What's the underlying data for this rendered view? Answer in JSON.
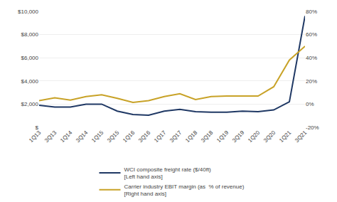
{
  "chart_data": {
    "type": "line",
    "categories": [
      "1Q13",
      "3Q13",
      "1Q14",
      "3Q14",
      "1Q15",
      "3Q15",
      "1Q16",
      "3Q16",
      "1Q17",
      "3Q17",
      "1Q18",
      "3Q18",
      "1Q19",
      "3Q19",
      "1Q20",
      "3Q20",
      "1Q21",
      "3Q21"
    ],
    "series": [
      {
        "name": "WCI composite freight rate ($/40ft)\n[Left hand axis]",
        "color": "#1f3864",
        "axis": "y",
        "values": [
          1900,
          1750,
          1750,
          2000,
          2000,
          1400,
          1100,
          1050,
          1400,
          1550,
          1350,
          1300,
          1300,
          1400,
          1350,
          1500,
          2200,
          9600
        ]
      },
      {
        "name": "Carrier industry EBIT margin (as  % of revenue)\n[Right hand axis]",
        "color": "#c8a227",
        "axis": "y2",
        "values": [
          3.0,
          5.5,
          3.5,
          6.5,
          8.0,
          5.0,
          1.5,
          3.0,
          6.5,
          9.0,
          4.0,
          6.5,
          7.0,
          7.0,
          7.0,
          15.0,
          38.0,
          50.0
        ]
      }
    ],
    "ylim": [
      0,
      10000
    ],
    "yticks": [
      {
        "value": 0,
        "label": "$"
      },
      {
        "value": 2000,
        "label": "$2,000"
      },
      {
        "value": 4000,
        "label": "$4,000"
      },
      {
        "value": 6000,
        "label": "$6,000"
      },
      {
        "value": 8000,
        "label": "$8,000"
      },
      {
        "value": 10000,
        "label": "$10,000"
      }
    ],
    "y2lim": [
      -20,
      80
    ],
    "y2ticks": [
      {
        "value": -20,
        "label": "-20%"
      },
      {
        "value": 0,
        "label": "0%"
      },
      {
        "value": 20,
        "label": "20%"
      },
      {
        "value": 40,
        "label": "40%"
      },
      {
        "value": 60,
        "label": "60%"
      },
      {
        "value": 80,
        "label": "80%"
      }
    ],
    "grid": true,
    "legend": "bottom"
  }
}
